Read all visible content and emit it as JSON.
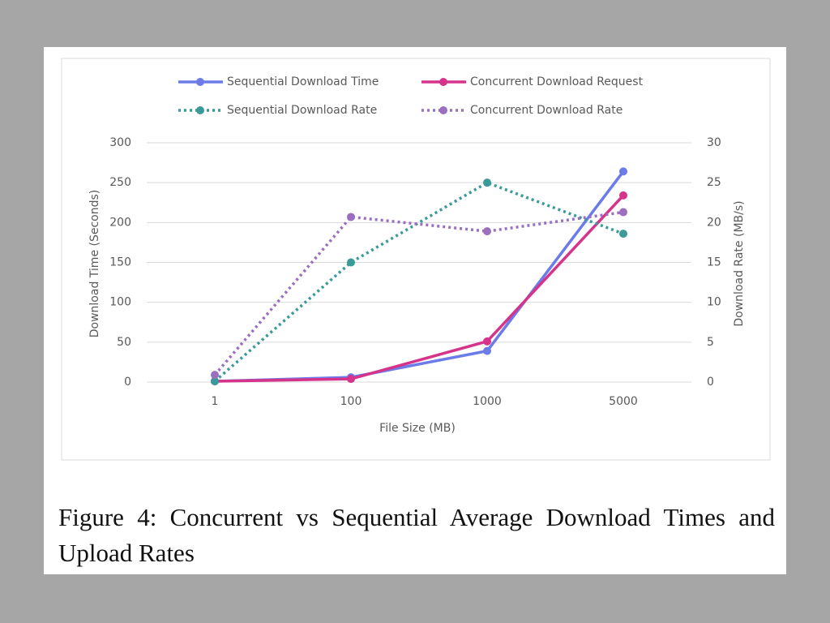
{
  "chart_data": {
    "type": "line",
    "caption": "Figure 4:  Concurrent vs Sequential Average Download Times and Upload Rates",
    "x_label": "File Size (MB)",
    "y_label": "Download Time (Seconds)",
    "y2_label": "Download Rate (MB/s)",
    "categories": [
      "1",
      "100",
      "1000",
      "5000"
    ],
    "ylim": [
      0,
      300
    ],
    "yticks": [
      0,
      50,
      100,
      150,
      200,
      250,
      300
    ],
    "y2lim": [
      0,
      30
    ],
    "y2ticks": [
      0,
      5,
      10,
      15,
      20,
      25,
      30
    ],
    "grid": true,
    "legend": "top",
    "series": [
      {
        "name": "Sequential Download Time",
        "color": "#6b7be8",
        "line_style": "solid",
        "values": [
          1,
          6,
          39,
          264
        ]
      },
      {
        "name": "Concurrent Download Request",
        "color": "#d6338a",
        "line_style": "solid",
        "values": [
          1,
          4,
          51,
          234
        ]
      },
      {
        "name": "Sequential Download Rate",
        "color": "#3a9a9a",
        "line_style": "dotted",
        "axis": "y2",
        "values": [
          0.1,
          15,
          25,
          18.6
        ]
      },
      {
        "name": "Concurrent Download Rate",
        "color": "#9b6ec0",
        "line_style": "dotted",
        "axis": "y2",
        "values": [
          0.9,
          20.7,
          18.9,
          21.3
        ]
      }
    ]
  }
}
